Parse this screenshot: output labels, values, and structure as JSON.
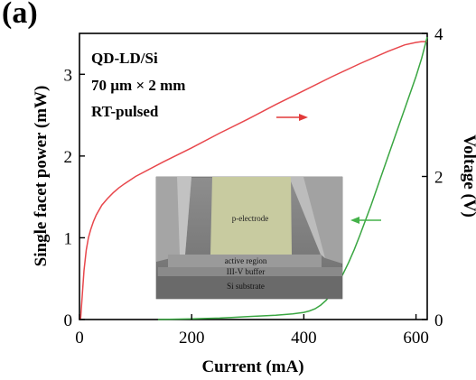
{
  "panel_label": "(a)",
  "annotations": {
    "line1": "QD-LD/Si",
    "line2": "70 µm × 2 mm",
    "line3": "RT-pulsed"
  },
  "inset": {
    "p_electrode": "p-electrode",
    "active_region": "active region",
    "buffer": "III-V buffer",
    "substrate": "Si substrate"
  },
  "chart_data": {
    "type": "line",
    "xlabel": "Current (mA)",
    "ylabel": "Single facet power (mW)",
    "ylabel_right": "Voltage (V)",
    "xlim": [
      0,
      620
    ],
    "ylim": [
      0,
      3.5
    ],
    "ylim_right": [
      0,
      4
    ],
    "xticks": [
      0,
      200,
      400,
      600
    ],
    "yticks": [
      0,
      1,
      2,
      3
    ],
    "yticks_right": [
      0,
      2,
      4
    ],
    "grid": false,
    "colors": {
      "power": "#e8474c",
      "voltage": "#3aa642",
      "arrow_power": "#e23a3a",
      "arrow_voltage": "#45b24a"
    },
    "series": [
      {
        "axis": "left",
        "x": [
          2,
          5,
          8,
          12,
          16,
          20,
          25,
          30,
          40,
          50,
          60,
          70,
          80,
          100,
          150,
          200,
          250,
          300,
          350,
          400,
          450,
          500,
          550,
          580,
          600,
          610,
          620
        ],
        "values": [
          0,
          0.3,
          0.6,
          0.85,
          1.0,
          1.1,
          1.2,
          1.28,
          1.4,
          1.48,
          1.55,
          1.61,
          1.66,
          1.75,
          1.93,
          2.1,
          2.28,
          2.45,
          2.63,
          2.8,
          2.97,
          3.13,
          3.28,
          3.36,
          3.39,
          3.4,
          3.4
        ]
      },
      {
        "axis": "right",
        "x": [
          140,
          200,
          250,
          300,
          350,
          380,
          400,
          410,
          420,
          430,
          440,
          450,
          460,
          470,
          480,
          490,
          500,
          520,
          540,
          560,
          580,
          600,
          610,
          620
        ],
        "values": [
          0,
          0.01,
          0.02,
          0.04,
          0.06,
          0.08,
          0.1,
          0.12,
          0.15,
          0.2,
          0.27,
          0.37,
          0.5,
          0.64,
          0.8,
          0.98,
          1.18,
          1.6,
          2.05,
          2.5,
          2.95,
          3.4,
          3.65,
          3.95
        ]
      }
    ]
  }
}
